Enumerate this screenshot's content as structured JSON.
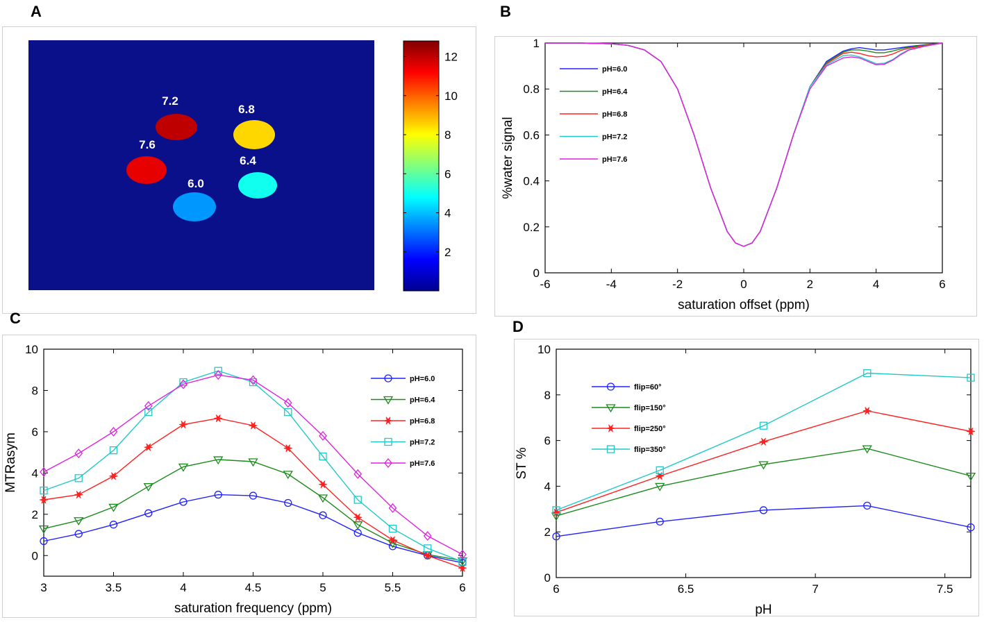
{
  "panels": {
    "a": "A",
    "b": "B",
    "c": "C",
    "d": "D"
  },
  "panel_a": {
    "phantoms": [
      {
        "label": "7.2",
        "value": 12.0
      },
      {
        "label": "6.8",
        "value": 8.5
      },
      {
        "label": "7.6",
        "value": 11.5
      },
      {
        "label": "6.4",
        "value": 5.0
      },
      {
        "label": "6.0",
        "value": 3.5
      }
    ],
    "colorbar": {
      "ticks": [
        "2",
        "4",
        "6",
        "8",
        "10",
        "12"
      ],
      "min": 0,
      "max": 12.8
    },
    "colors": {
      "background": "#0a0f8a"
    }
  },
  "chart_data": [
    {
      "panel": "B",
      "type": "line",
      "title": "",
      "xlabel": "saturation offset (ppm)",
      "ylabel": "%water signal",
      "xlim": [
        -6,
        6
      ],
      "ylim": [
        0,
        1
      ],
      "xticks": [
        "-6",
        "-4",
        "-2",
        "0",
        "2",
        "4",
        "6"
      ],
      "yticks": [
        "0",
        "0.2",
        "0.4",
        "0.6",
        "0.8",
        "1"
      ],
      "legend_position": "top-left",
      "x": [
        -6,
        -5,
        -4,
        -3.5,
        -3,
        -2.5,
        -2,
        -1.5,
        -1,
        -0.5,
        -0.25,
        0,
        0.25,
        0.5,
        1,
        1.5,
        2,
        2.5,
        3,
        3.25,
        3.5,
        3.75,
        4,
        4.25,
        4.5,
        4.75,
        5,
        5.5,
        6
      ],
      "series": [
        {
          "name": "pH=6.0",
          "color": "#2020ff",
          "values": [
            1,
            1,
            0.997,
            0.99,
            0.97,
            0.92,
            0.8,
            0.6,
            0.37,
            0.18,
            0.13,
            0.115,
            0.13,
            0.18,
            0.37,
            0.6,
            0.81,
            0.92,
            0.965,
            0.975,
            0.98,
            0.975,
            0.97,
            0.97,
            0.975,
            0.98,
            0.985,
            0.993,
            1
          ]
        },
        {
          "name": "pH=6.4",
          "color": "#1a8a1a",
          "values": [
            1,
            1,
            0.997,
            0.99,
            0.97,
            0.92,
            0.8,
            0.6,
            0.37,
            0.18,
            0.13,
            0.115,
            0.13,
            0.18,
            0.37,
            0.6,
            0.81,
            0.915,
            0.96,
            0.97,
            0.97,
            0.965,
            0.958,
            0.958,
            0.965,
            0.975,
            0.982,
            0.992,
            1
          ]
        },
        {
          "name": "pH=6.8",
          "color": "#ff2020",
          "values": [
            1,
            1,
            0.997,
            0.99,
            0.97,
            0.92,
            0.8,
            0.6,
            0.37,
            0.18,
            0.13,
            0.115,
            0.13,
            0.18,
            0.37,
            0.6,
            0.81,
            0.91,
            0.955,
            0.96,
            0.955,
            0.945,
            0.94,
            0.942,
            0.952,
            0.968,
            0.978,
            0.99,
            1
          ]
        },
        {
          "name": "pH=7.2",
          "color": "#20c8c8",
          "values": [
            1,
            1,
            0.997,
            0.99,
            0.97,
            0.92,
            0.8,
            0.6,
            0.37,
            0.18,
            0.13,
            0.115,
            0.13,
            0.18,
            0.37,
            0.6,
            0.81,
            0.905,
            0.945,
            0.948,
            0.94,
            0.925,
            0.91,
            0.912,
            0.928,
            0.953,
            0.972,
            0.988,
            1
          ]
        },
        {
          "name": "pH=7.6",
          "color": "#e020e0",
          "values": [
            1,
            1,
            0.997,
            0.99,
            0.97,
            0.92,
            0.8,
            0.6,
            0.37,
            0.18,
            0.13,
            0.115,
            0.13,
            0.18,
            0.37,
            0.6,
            0.8,
            0.9,
            0.935,
            0.94,
            0.935,
            0.92,
            0.905,
            0.908,
            0.925,
            0.95,
            0.97,
            0.987,
            1
          ]
        }
      ]
    },
    {
      "panel": "C",
      "type": "line",
      "title": "",
      "xlabel": "saturation frequency (ppm)",
      "ylabel": "MTRasym",
      "xlim": [
        3,
        6
      ],
      "ylim": [
        -1,
        10
      ],
      "xticks": [
        "3",
        "3.5",
        "4",
        "4.5",
        "5",
        "5.5",
        "6"
      ],
      "yticks": [
        "0",
        "2",
        "4",
        "6",
        "8",
        "10"
      ],
      "legend_position": "top-right",
      "x": [
        3,
        3.25,
        3.5,
        3.75,
        4,
        4.25,
        4.5,
        4.75,
        5,
        5.25,
        5.5,
        5.75,
        6
      ],
      "series": [
        {
          "name": "pH=6.0",
          "color": "#2020ff",
          "marker": "circle",
          "values": [
            0.7,
            1.05,
            1.5,
            2.05,
            2.6,
            2.95,
            2.9,
            2.55,
            1.95,
            1.1,
            0.45,
            0.0,
            -0.35
          ]
        },
        {
          "name": "pH=6.4",
          "color": "#1a8a1a",
          "marker": "triangle-down",
          "values": [
            1.3,
            1.7,
            2.35,
            3.35,
            4.3,
            4.65,
            4.55,
            3.95,
            2.8,
            1.5,
            0.6,
            0.05,
            -0.25
          ]
        },
        {
          "name": "pH=6.8",
          "color": "#ff2020",
          "marker": "star",
          "values": [
            2.7,
            2.95,
            3.85,
            5.25,
            6.35,
            6.65,
            6.3,
            5.2,
            3.45,
            1.85,
            0.75,
            0.0,
            -0.6
          ]
        },
        {
          "name": "pH=7.2",
          "color": "#20c8c8",
          "marker": "square",
          "values": [
            3.15,
            3.75,
            5.1,
            6.95,
            8.4,
            8.95,
            8.4,
            6.95,
            4.8,
            2.7,
            1.3,
            0.35,
            -0.3
          ]
        },
        {
          "name": "pH=7.6",
          "color": "#e020e0",
          "marker": "diamond",
          "values": [
            4.05,
            4.95,
            6.0,
            7.25,
            8.3,
            8.75,
            8.5,
            7.4,
            5.8,
            3.95,
            2.3,
            0.95,
            0.05
          ]
        }
      ]
    },
    {
      "panel": "D",
      "type": "line",
      "title": "",
      "xlabel": "pH",
      "ylabel": "ST %",
      "xlim": [
        6,
        7.6
      ],
      "ylim": [
        0,
        10
      ],
      "xticks": [
        "6",
        "6.5",
        "7",
        "7.5"
      ],
      "yticks": [
        "0",
        "2",
        "4",
        "6",
        "8",
        "10"
      ],
      "legend_position": "top-left",
      "x": [
        6.0,
        6.4,
        6.8,
        7.2,
        7.6
      ],
      "series": [
        {
          "name": "flip=60°",
          "color": "#2020ff",
          "marker": "circle",
          "values": [
            1.8,
            2.45,
            2.95,
            3.15,
            2.2
          ]
        },
        {
          "name": "flip=150°",
          "color": "#1a8a1a",
          "marker": "triangle-down",
          "values": [
            2.7,
            4.0,
            4.95,
            5.65,
            4.45
          ]
        },
        {
          "name": "flip=250°",
          "color": "#ff2020",
          "marker": "star",
          "values": [
            2.85,
            4.45,
            5.95,
            7.3,
            6.4
          ]
        },
        {
          "name": "flip=350°",
          "color": "#20c8c8",
          "marker": "square",
          "values": [
            2.95,
            4.7,
            6.65,
            8.95,
            8.75
          ]
        }
      ]
    }
  ]
}
